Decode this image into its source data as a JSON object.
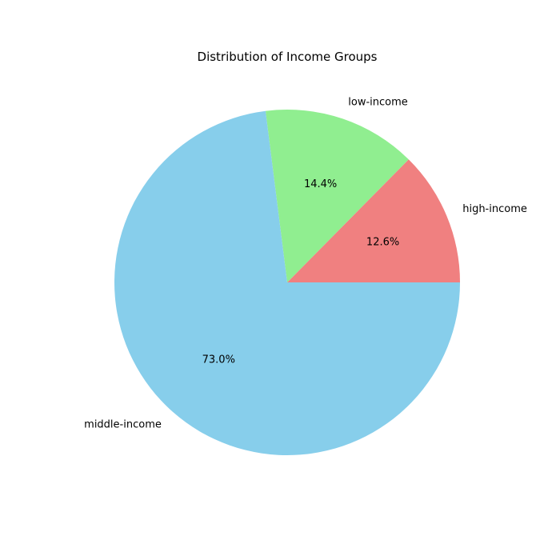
{
  "chart_data": {
    "type": "pie",
    "title": "Distribution of Income Groups",
    "categories": [
      "high-income",
      "low-income",
      "middle-income"
    ],
    "values": [
      12.6,
      14.4,
      73.0
    ],
    "value_labels": [
      "12.6%",
      "14.4%",
      "73.0%"
    ],
    "colors": [
      "#F08080",
      "#90EE90",
      "#87CEEB"
    ],
    "start_angle_deg": 0,
    "direction": "counterclockwise",
    "legend": "none"
  }
}
